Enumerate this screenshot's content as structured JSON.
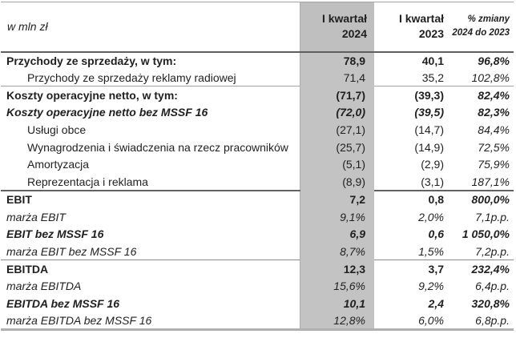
{
  "table": {
    "unit_label": "w mln zł",
    "columns": {
      "q2024": {
        "line1": "I kwartał",
        "line2": "2024"
      },
      "q2023": {
        "line1": "I kwartał",
        "line2": "2023"
      },
      "change": {
        "line1": "% zmiany",
        "line2": "2024 do 2023"
      }
    },
    "rows": [
      {
        "label": "Przychody ze sprzedaży, w tym:",
        "q2024": "78,9",
        "q2023": "40,1",
        "change": "96,8%",
        "label_style": "bold",
        "value_style": "bold",
        "change_style": "bold-italic",
        "indent": false,
        "section_border": "none"
      },
      {
        "label": "Przychody ze sprzedaży reklamy radiowej",
        "q2024": "71,4",
        "q2023": "35,2",
        "change": "102,8%",
        "label_style": "regular",
        "value_style": "regular",
        "change_style": "italic",
        "indent": true,
        "section_border": "none"
      },
      {
        "label": "Koszty operacyjne netto, w tym:",
        "q2024": "(71,7)",
        "q2023": "(39,3)",
        "change": "82,4%",
        "label_style": "bold",
        "value_style": "bold",
        "change_style": "bold-italic",
        "indent": false,
        "section_border": "light"
      },
      {
        "label": "Koszty operacyjne netto bez MSSF 16",
        "q2024": "(72,0)",
        "q2023": "(39,5)",
        "change": "82,3%",
        "label_style": "bold-italic",
        "value_style": "bold-italic",
        "change_style": "bold-italic",
        "indent": false,
        "section_border": "none"
      },
      {
        "label": "Usługi obce",
        "q2024": "(27,1)",
        "q2023": "(14,7)",
        "change": "84,4%",
        "label_style": "regular",
        "value_style": "regular",
        "change_style": "italic",
        "indent": true,
        "section_border": "none"
      },
      {
        "label": "Wynagrodzenia i świadczenia na rzecz pracowników",
        "q2024": "(25,7)",
        "q2023": "(14,9)",
        "change": "72,5%",
        "label_style": "regular",
        "value_style": "regular",
        "change_style": "italic",
        "indent": true,
        "section_border": "none"
      },
      {
        "label": "Amortyzacja",
        "q2024": "(5,1)",
        "q2023": "(2,9)",
        "change": "75,9%",
        "label_style": "regular",
        "value_style": "regular",
        "change_style": "italic",
        "indent": true,
        "section_border": "none"
      },
      {
        "label": "Reprezentacja i reklama",
        "q2024": "(8,9)",
        "q2023": "(3,1)",
        "change": "187,1%",
        "label_style": "regular",
        "value_style": "regular",
        "change_style": "italic",
        "indent": true,
        "section_border": "none"
      },
      {
        "label": "EBIT",
        "q2024": "7,2",
        "q2023": "0,8",
        "change": "800,0%",
        "label_style": "bold",
        "value_style": "bold",
        "change_style": "bold-italic",
        "indent": false,
        "section_border": "dark"
      },
      {
        "label": "marża EBIT",
        "q2024": "9,1%",
        "q2023": "2,0%",
        "change": "7,1p.p.",
        "label_style": "italic",
        "value_style": "italic",
        "change_style": "italic",
        "indent": false,
        "section_border": "none"
      },
      {
        "label": "EBIT bez MSSF 16",
        "q2024": "6,9",
        "q2023": "0,6",
        "change": "1 050,0%",
        "label_style": "bold-italic",
        "value_style": "bold-italic",
        "change_style": "bold-italic",
        "indent": false,
        "section_border": "none"
      },
      {
        "label": "marża EBIT bez MSSF 16",
        "q2024": "8,7%",
        "q2023": "1,5%",
        "change": "7,2p.p.",
        "label_style": "italic",
        "value_style": "italic",
        "change_style": "italic",
        "indent": false,
        "section_border": "none"
      },
      {
        "label": "EBITDA",
        "q2024": "12,3",
        "q2023": "3,7",
        "change": "232,4%",
        "label_style": "bold",
        "value_style": "bold",
        "change_style": "bold-italic",
        "indent": false,
        "section_border": "mid"
      },
      {
        "label": "marża EBITDA",
        "q2024": "15,6%",
        "q2023": "9,2%",
        "change": "6,4p.p.",
        "label_style": "italic",
        "value_style": "italic",
        "change_style": "italic",
        "indent": false,
        "section_border": "none"
      },
      {
        "label": "EBITDA bez MSSF 16",
        "q2024": "10,1",
        "q2023": "2,4",
        "change": "320,8%",
        "label_style": "bold-italic",
        "value_style": "bold-italic",
        "change_style": "bold-italic",
        "indent": false,
        "section_border": "none"
      },
      {
        "label": "marża EBITDA bez MSSF 16",
        "q2024": "12,8%",
        "q2023": "6,0%",
        "change": "6,8p.p.",
        "label_style": "italic",
        "value_style": "italic",
        "change_style": "italic",
        "indent": false,
        "section_border": "none"
      }
    ]
  },
  "colors": {
    "highlight_column_header": "#bfbfbf",
    "highlight_column_body": "#c3c3c3",
    "header_rule": "#5f5f5f",
    "section_rule_dark": "#626262",
    "section_rule_light": "#a3a3a3",
    "table_bottom_rule": "#b0b0b0",
    "text": "#1f1f1f"
  }
}
